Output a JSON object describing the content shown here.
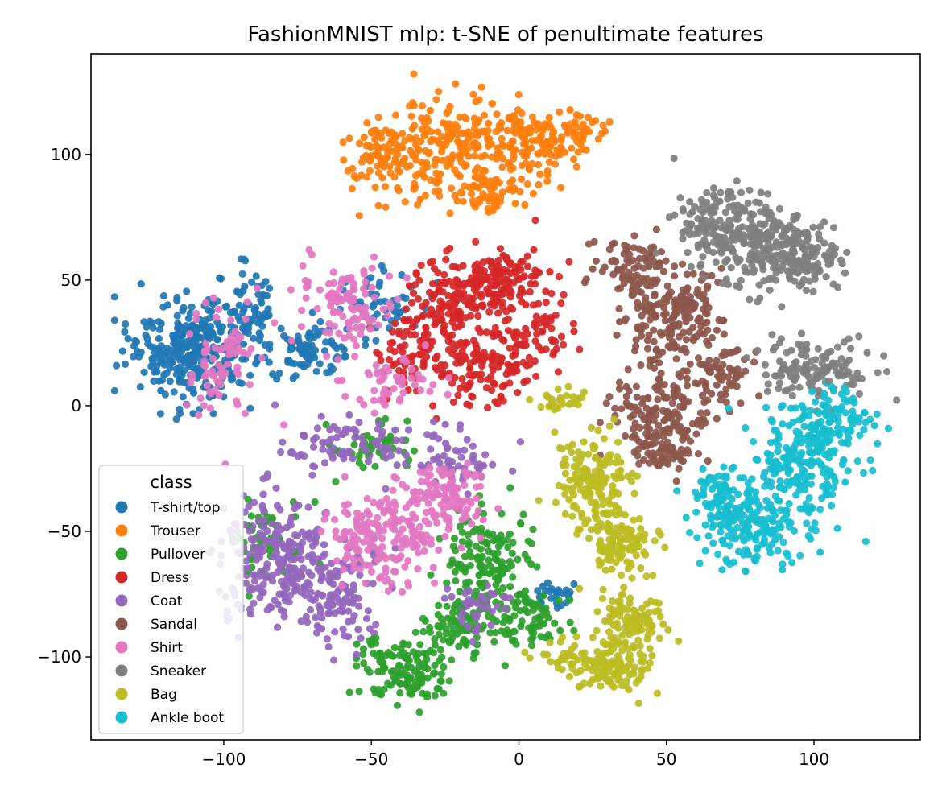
{
  "chart_data": {
    "type": "scatter",
    "title": "FashionMNIST mlp: t-SNE of penultimate features",
    "xlabel": "",
    "ylabel": "",
    "xlim": [
      -145,
      136
    ],
    "ylim": [
      -133,
      140
    ],
    "x_ticks": [
      -100,
      -50,
      0,
      50,
      100
    ],
    "y_ticks": [
      100,
      50,
      0,
      -50,
      -100
    ],
    "x_tick_labels": [
      "−100",
      "−50",
      "0",
      "50",
      "100"
    ],
    "y_tick_labels": [
      "100",
      "50",
      "0",
      "−50",
      "−100"
    ],
    "grid": false,
    "legend": {
      "title": "class",
      "position": "lower-left"
    },
    "series": [
      {
        "name": "T-shirt/top",
        "color": "#1f77b4",
        "clusters": [
          {
            "center": [
              -112,
              22
            ],
            "spread": [
              13,
              13
            ],
            "weight": 0.58
          },
          {
            "center": [
              -92,
              38
            ],
            "spread": [
              6,
              12
            ],
            "weight": 0.12
          },
          {
            "center": [
              -72,
              22
            ],
            "spread": [
              10,
              6
            ],
            "weight": 0.15
          },
          {
            "center": [
              -50,
              40
            ],
            "spread": [
              11,
              10
            ],
            "weight": 0.1
          },
          {
            "center": [
              12,
              -76
            ],
            "spread": [
              5,
              4
            ],
            "weight": 0.05
          }
        ]
      },
      {
        "name": "Trouser",
        "color": "#ff7f0e",
        "clusters": [
          {
            "center": [
              -45,
              100
            ],
            "spread": [
              10,
              9
            ],
            "weight": 0.22
          },
          {
            "center": [
              -22,
              105
            ],
            "spread": [
              11,
              11
            ],
            "weight": 0.32
          },
          {
            "center": [
              5,
              104
            ],
            "spread": [
              11,
              9
            ],
            "weight": 0.28
          },
          {
            "center": [
              -10,
              85
            ],
            "spread": [
              9,
              6
            ],
            "weight": 0.12
          },
          {
            "center": [
              22,
              110
            ],
            "spread": [
              5,
              4
            ],
            "weight": 0.06
          }
        ]
      },
      {
        "name": "Pullover",
        "color": "#2ca02c",
        "clusters": [
          {
            "center": [
              -38,
              -105
            ],
            "spread": [
              10,
              8
            ],
            "weight": 0.25
          },
          {
            "center": [
              -18,
              -88
            ],
            "spread": [
              10,
              9
            ],
            "weight": 0.2
          },
          {
            "center": [
              -10,
              -60
            ],
            "spread": [
              9,
              12
            ],
            "weight": 0.25
          },
          {
            "center": [
              4,
              -85
            ],
            "spread": [
              7,
              8
            ],
            "weight": 0.12
          },
          {
            "center": [
              -85,
              -55
            ],
            "spread": [
              8,
              12
            ],
            "weight": 0.1
          },
          {
            "center": [
              -50,
              -15
            ],
            "spread": [
              10,
              8
            ],
            "weight": 0.08
          }
        ]
      },
      {
        "name": "Dress",
        "color": "#d62728",
        "clusters": [
          {
            "center": [
              -22,
              42
            ],
            "spread": [
              9,
              10
            ],
            "weight": 0.25
          },
          {
            "center": [
              -5,
              50
            ],
            "spread": [
              11,
              9
            ],
            "weight": 0.25
          },
          {
            "center": [
              -12,
              15
            ],
            "spread": [
              12,
              9
            ],
            "weight": 0.25
          },
          {
            "center": [
              -35,
              22
            ],
            "spread": [
              8,
              11
            ],
            "weight": 0.15
          },
          {
            "center": [
              5,
              30
            ],
            "spread": [
              8,
              8
            ],
            "weight": 0.1
          }
        ]
      },
      {
        "name": "Coat",
        "color": "#9467bd",
        "clusters": [
          {
            "center": [
              -82,
              -62
            ],
            "spread": [
              12,
              16
            ],
            "weight": 0.45
          },
          {
            "center": [
              -60,
              -75
            ],
            "spread": [
              10,
              12
            ],
            "weight": 0.2
          },
          {
            "center": [
              -60,
              -15
            ],
            "spread": [
              12,
              6
            ],
            "weight": 0.15
          },
          {
            "center": [
              -22,
              -22
            ],
            "spread": [
              12,
              7
            ],
            "weight": 0.12
          },
          {
            "center": [
              -15,
              -80
            ],
            "spread": [
              6,
              6
            ],
            "weight": 0.08
          }
        ]
      },
      {
        "name": "Sandal",
        "color": "#8c564b",
        "clusters": [
          {
            "center": [
              40,
              55
            ],
            "spread": [
              8,
              8
            ],
            "weight": 0.15
          },
          {
            "center": [
              52,
              35
            ],
            "spread": [
              11,
              11
            ],
            "weight": 0.35
          },
          {
            "center": [
              50,
              0
            ],
            "spread": [
              12,
              12
            ],
            "weight": 0.3
          },
          {
            "center": [
              50,
              -18
            ],
            "spread": [
              6,
              6
            ],
            "weight": 0.12
          },
          {
            "center": [
              70,
              15
            ],
            "spread": [
              6,
              8
            ],
            "weight": 0.08
          }
        ]
      },
      {
        "name": "Shirt",
        "color": "#e377c2",
        "clusters": [
          {
            "center": [
              -48,
              -55
            ],
            "spread": [
              11,
              11
            ],
            "weight": 0.3
          },
          {
            "center": [
              -28,
              -38
            ],
            "spread": [
              10,
              9
            ],
            "weight": 0.25
          },
          {
            "center": [
              -58,
              40
            ],
            "spread": [
              10,
              10
            ],
            "weight": 0.2
          },
          {
            "center": [
              -100,
              20
            ],
            "spread": [
              9,
              16
            ],
            "weight": 0.15
          },
          {
            "center": [
              -45,
              10
            ],
            "spread": [
              12,
              7
            ],
            "weight": 0.1
          }
        ]
      },
      {
        "name": "Sneaker",
        "color": "#7f7f7f",
        "clusters": [
          {
            "center": [
              70,
              70
            ],
            "spread": [
              11,
              10
            ],
            "weight": 0.35
          },
          {
            "center": [
              88,
              62
            ],
            "spread": [
              10,
              10
            ],
            "weight": 0.3
          },
          {
            "center": [
              100,
              55
            ],
            "spread": [
              6,
              6
            ],
            "weight": 0.1
          },
          {
            "center": [
              100,
              15
            ],
            "spread": [
              12,
              7
            ],
            "weight": 0.25
          }
        ]
      },
      {
        "name": "Bag",
        "color": "#bcbd22",
        "clusters": [
          {
            "center": [
              25,
              -30
            ],
            "spread": [
              8,
              11
            ],
            "weight": 0.3
          },
          {
            "center": [
              35,
              -55
            ],
            "spread": [
              8,
              8
            ],
            "weight": 0.2
          },
          {
            "center": [
              38,
              -85
            ],
            "spread": [
              7,
              8
            ],
            "weight": 0.2
          },
          {
            "center": [
              30,
              -105
            ],
            "spread": [
              9,
              6
            ],
            "weight": 0.2
          },
          {
            "center": [
              15,
              2
            ],
            "spread": [
              5,
              3
            ],
            "weight": 0.05
          },
          {
            "center": [
              15,
              -100
            ],
            "spread": [
              7,
              5
            ],
            "weight": 0.05
          }
        ]
      },
      {
        "name": "Ankle boot",
        "color": "#17becf",
        "clusters": [
          {
            "center": [
              95,
              -25
            ],
            "spread": [
              11,
              12
            ],
            "weight": 0.35
          },
          {
            "center": [
              80,
              -50
            ],
            "spread": [
              12,
              9
            ],
            "weight": 0.3
          },
          {
            "center": [
              105,
              -5
            ],
            "spread": [
              9,
              9
            ],
            "weight": 0.2
          },
          {
            "center": [
              70,
              -35
            ],
            "spread": [
              7,
              7
            ],
            "weight": 0.15
          }
        ]
      }
    ]
  }
}
